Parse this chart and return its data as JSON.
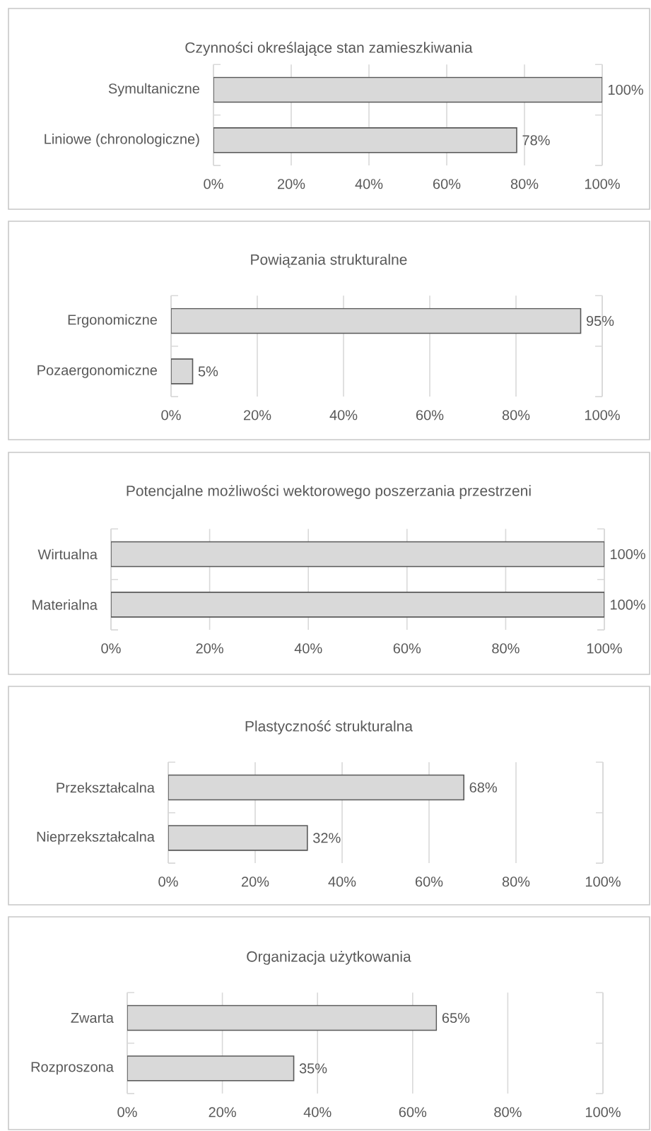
{
  "chart_data": [
    {
      "type": "bar",
      "orientation": "horizontal",
      "title": "Czynności określające stan zamieszkiwania",
      "categories": [
        "Symultaniczne",
        "Liniowe (chronologiczne)"
      ],
      "values": [
        100,
        78
      ],
      "value_labels": [
        "100%",
        "78%"
      ],
      "color": "#d9d9d9",
      "xlim": [
        0,
        100
      ],
      "xticks": [
        {
          "value": 0,
          "label": "0%"
        },
        {
          "value": 20,
          "label": "20%"
        },
        {
          "value": 40,
          "label": "40%"
        },
        {
          "value": 60,
          "label": "60%"
        },
        {
          "value": 80,
          "label": "80%"
        },
        {
          "value": 100,
          "label": "100%"
        }
      ],
      "grid": "x"
    },
    {
      "type": "bar",
      "orientation": "horizontal",
      "title": "Powiązania strukturalne",
      "categories": [
        "Ergonomiczne",
        "Pozaergonomiczne"
      ],
      "values": [
        95,
        5
      ],
      "value_labels": [
        "95%",
        "5%"
      ],
      "color": "#d9d9d9",
      "xlim": [
        0,
        100
      ],
      "xticks": [
        {
          "value": 0,
          "label": "0%"
        },
        {
          "value": 20,
          "label": "20%"
        },
        {
          "value": 40,
          "label": "40%"
        },
        {
          "value": 60,
          "label": "60%"
        },
        {
          "value": 80,
          "label": "80%"
        },
        {
          "value": 100,
          "label": "100%"
        }
      ],
      "grid": "x"
    },
    {
      "type": "bar",
      "orientation": "horizontal",
      "title": "Potencjalne możliwości wektorowego poszerzania przestrzeni",
      "categories": [
        "Wirtualna",
        "Materialna"
      ],
      "values": [
        100,
        100
      ],
      "value_labels": [
        "100%",
        "100%"
      ],
      "color": "#d9d9d9",
      "xlim": [
        0,
        100
      ],
      "xticks": [
        {
          "value": 0,
          "label": "0%"
        },
        {
          "value": 20,
          "label": "20%"
        },
        {
          "value": 40,
          "label": "40%"
        },
        {
          "value": 60,
          "label": "60%"
        },
        {
          "value": 80,
          "label": "80%"
        },
        {
          "value": 100,
          "label": "100%"
        }
      ],
      "grid": "x"
    },
    {
      "type": "bar",
      "orientation": "horizontal",
      "title": "Plastyczność strukturalna",
      "categories": [
        "Przekształcalna",
        "Nieprzekształcalna"
      ],
      "values": [
        68,
        32
      ],
      "value_labels": [
        "68%",
        "32%"
      ],
      "color": "#d9d9d9",
      "xlim": [
        0,
        100
      ],
      "xticks": [
        {
          "value": 0,
          "label": "0%"
        },
        {
          "value": 20,
          "label": "20%"
        },
        {
          "value": 40,
          "label": "40%"
        },
        {
          "value": 60,
          "label": "60%"
        },
        {
          "value": 80,
          "label": "80%"
        },
        {
          "value": 100,
          "label": "100%"
        }
      ],
      "grid": "x"
    },
    {
      "type": "bar",
      "orientation": "horizontal",
      "title": "Organizacja użytkowania",
      "categories": [
        "Zwarta",
        "Rozproszona"
      ],
      "values": [
        65,
        35
      ],
      "value_labels": [
        "65%",
        "35%"
      ],
      "color": "#d9d9d9",
      "xlim": [
        0,
        100
      ],
      "xticks": [
        {
          "value": 0,
          "label": "0%"
        },
        {
          "value": 20,
          "label": "20%"
        },
        {
          "value": 40,
          "label": "40%"
        },
        {
          "value": 60,
          "label": "60%"
        },
        {
          "value": 80,
          "label": "80%"
        },
        {
          "value": 100,
          "label": "100%"
        }
      ],
      "grid": "x"
    }
  ]
}
